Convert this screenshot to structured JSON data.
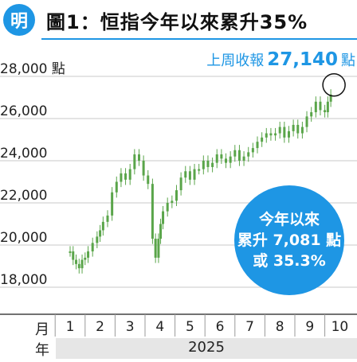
{
  "header": {
    "logo_char": "明",
    "title": "圖1：恒指今年以來累升35%"
  },
  "last_week": {
    "label": "上周收報",
    "value": "27,140",
    "unit": "點"
  },
  "callout": {
    "line1": "今年以來",
    "line2": "累升 7,081 點",
    "line3": "或 35.3%"
  },
  "axis_labels": {
    "month_row": "月",
    "year_row": "年",
    "year": "2025"
  },
  "colors": {
    "accent": "#1e96e4",
    "candle": "#5aa54a",
    "axis_band": "#e6e6e6"
  },
  "chart_data": {
    "type": "line",
    "title": "圖1：恒指今年以來累升35%",
    "xlabel": "",
    "ylabel": "",
    "y_unit": "點",
    "ylim": [
      17000,
      29000
    ],
    "yticks": [
      18000,
      20000,
      22000,
      24000,
      26000,
      28000
    ],
    "ytick_labels": [
      "18,000",
      "20,000",
      "22,000",
      "24,000",
      "26,000",
      "28,000"
    ],
    "x_tick_labels": [
      "1",
      "2",
      "3",
      "4",
      "5",
      "6",
      "7",
      "8",
      "9",
      "10"
    ],
    "x_range_months": [
      1,
      10
    ],
    "grid": "horizontal",
    "series": [
      {
        "name": "",
        "x": [
          1.0,
          1.1,
          1.2,
          1.3,
          1.4,
          1.5,
          1.6,
          1.75,
          1.9,
          2.0,
          2.1,
          2.25,
          2.4,
          2.55,
          2.7,
          2.85,
          3.0,
          3.15,
          3.3,
          3.45,
          3.6,
          3.75,
          3.85,
          3.95,
          4.02,
          4.1,
          4.25,
          4.4,
          4.55,
          4.7,
          4.85,
          5.0,
          5.15,
          5.3,
          5.45,
          5.6,
          5.75,
          5.9,
          6.05,
          6.2,
          6.35,
          6.5,
          6.65,
          6.8,
          6.95,
          7.1,
          7.25,
          7.4,
          7.55,
          7.7,
          7.85,
          8.0,
          8.15,
          8.3,
          8.45,
          8.6,
          8.75,
          8.9,
          9.05,
          9.2,
          9.35,
          9.5,
          9.6,
          9.7
        ],
        "y": [
          19700,
          19300,
          19100,
          18900,
          19300,
          19400,
          19700,
          20100,
          20400,
          20700,
          21100,
          21400,
          22500,
          23000,
          23400,
          23100,
          23600,
          24300,
          24000,
          23300,
          22900,
          20300,
          19400,
          20300,
          21000,
          21600,
          22000,
          22100,
          22600,
          23200,
          23500,
          23100,
          23600,
          23600,
          24000,
          23700,
          23900,
          24300,
          24100,
          23900,
          24200,
          24500,
          24000,
          24200,
          24400,
          24600,
          24900,
          25100,
          25300,
          25200,
          25300,
          25600,
          25100,
          25400,
          25700,
          25300,
          25600,
          26100,
          26300,
          26800,
          26400,
          26300,
          26800,
          27140
        ]
      }
    ]
  }
}
